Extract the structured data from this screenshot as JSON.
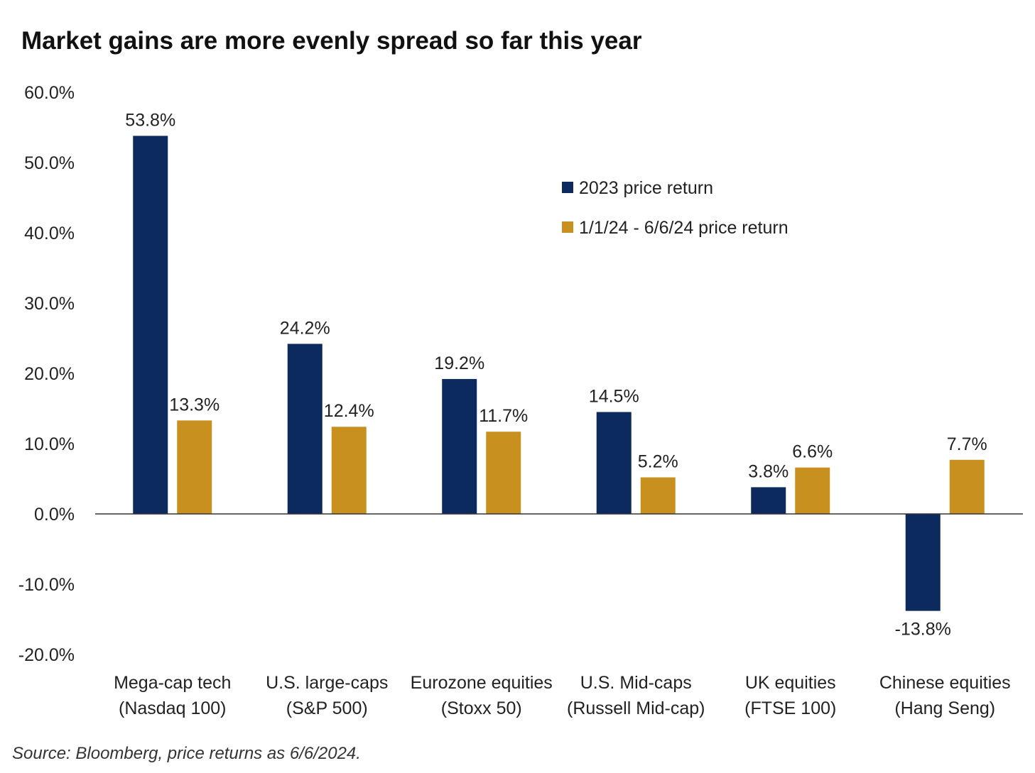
{
  "title": "Market gains are more evenly spread so far this year",
  "source": "Source: Bloomberg, price returns as 6/6/2024.",
  "chart_data": {
    "type": "bar",
    "title": "Market gains are more evenly spread so far this year",
    "xlabel": "",
    "ylabel": "",
    "ylim": [
      -20,
      60
    ],
    "yticks": [
      "60.0%",
      "50.0%",
      "40.0%",
      "30.0%",
      "20.0%",
      "10.0%",
      "0.0%",
      "-10.0%",
      "-20.0%"
    ],
    "ytick_values": [
      60,
      50,
      40,
      30,
      20,
      10,
      0,
      -10,
      -20
    ],
    "grid": false,
    "legend_position": "top-right",
    "categories": [
      [
        "Mega-cap tech",
        "(Nasdaq 100)"
      ],
      [
        "U.S. large-caps",
        "(S&P 500)"
      ],
      [
        "Eurozone equities",
        "(Stoxx 50)"
      ],
      [
        "U.S. Mid-caps",
        "(Russell Mid-cap)"
      ],
      [
        "UK equities",
        "(FTSE 100)"
      ],
      [
        "Chinese equities",
        "(Hang Seng)"
      ]
    ],
    "series": [
      {
        "name": "2023 price return",
        "color": "#0d2a5e",
        "values": [
          53.8,
          24.2,
          19.2,
          14.5,
          3.8,
          -13.8
        ],
        "labels": [
          "53.8%",
          "24.2%",
          "19.2%",
          "14.5%",
          "3.8%",
          "-13.8%"
        ]
      },
      {
        "name": "1/1/24 - 6/6/24 price return",
        "color": "#c8901e",
        "values": [
          13.3,
          12.4,
          11.7,
          5.2,
          6.6,
          7.7
        ],
        "labels": [
          "13.3%",
          "12.4%",
          "11.7%",
          "5.2%",
          "6.6%",
          "7.7%"
        ]
      }
    ]
  }
}
